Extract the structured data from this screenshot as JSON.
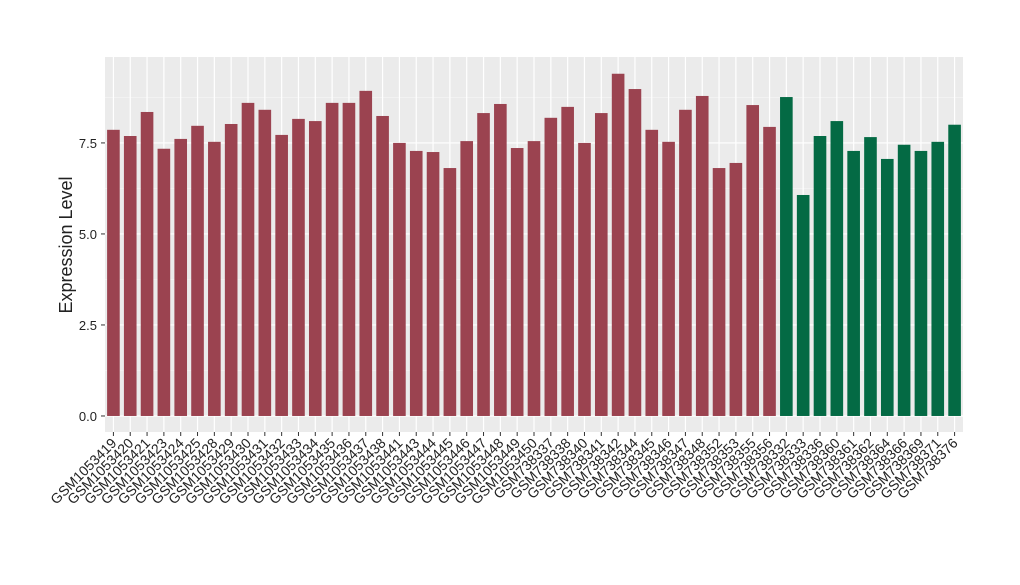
{
  "chart_data": {
    "type": "bar",
    "y_label": "Expression Level",
    "categories": [
      "GSM1053419",
      "GSM1053420",
      "GSM1053421",
      "GSM1053423",
      "GSM1053424",
      "GSM1053425",
      "GSM1053428",
      "GSM1053429",
      "GSM1053430",
      "GSM1053431",
      "GSM1053432",
      "GSM1053433",
      "GSM1053434",
      "GSM1053435",
      "GSM1053436",
      "GSM1053437",
      "GSM1053438",
      "GSM1053441",
      "GSM1053443",
      "GSM1053444",
      "GSM1053445",
      "GSM1053446",
      "GSM1053447",
      "GSM1053448",
      "GSM1053449",
      "GSM1053450",
      "GSM738337",
      "GSM738338",
      "GSM738340",
      "GSM738341",
      "GSM738342",
      "GSM738344",
      "GSM738345",
      "GSM738346",
      "GSM738347",
      "GSM738348",
      "GSM738352",
      "GSM738353",
      "GSM738355",
      "GSM738356",
      "GSM738332",
      "GSM738333",
      "GSM738336",
      "GSM738360",
      "GSM738361",
      "GSM738362",
      "GSM738364",
      "GSM738366",
      "GSM738369",
      "GSM738371",
      "GSM738376"
    ],
    "values": [
      7.86,
      7.69,
      8.35,
      7.34,
      7.61,
      7.97,
      7.53,
      8.02,
      8.6,
      8.41,
      7.72,
      8.16,
      8.1,
      8.6,
      8.6,
      8.93,
      8.24,
      7.5,
      7.28,
      7.25,
      6.81,
      7.55,
      8.32,
      8.57,
      7.36,
      7.55,
      8.19,
      8.49,
      7.5,
      8.32,
      9.4,
      8.98,
      7.86,
      7.53,
      8.41,
      8.79,
      6.81,
      6.95,
      8.54,
      7.94,
      8.76,
      6.07,
      7.69,
      8.1,
      7.28,
      7.66,
      7.06,
      7.45,
      7.28,
      7.53,
      8.0
    ],
    "colors": [
      "#9b4350",
      "#9b4350",
      "#9b4350",
      "#9b4350",
      "#9b4350",
      "#9b4350",
      "#9b4350",
      "#9b4350",
      "#9b4350",
      "#9b4350",
      "#9b4350",
      "#9b4350",
      "#9b4350",
      "#9b4350",
      "#9b4350",
      "#9b4350",
      "#9b4350",
      "#9b4350",
      "#9b4350",
      "#9b4350",
      "#9b4350",
      "#9b4350",
      "#9b4350",
      "#9b4350",
      "#9b4350",
      "#9b4350",
      "#9b4350",
      "#9b4350",
      "#9b4350",
      "#9b4350",
      "#9b4350",
      "#9b4350",
      "#9b4350",
      "#9b4350",
      "#9b4350",
      "#9b4350",
      "#9b4350",
      "#9b4350",
      "#9b4350",
      "#9b4350",
      "#046a44",
      "#046a44",
      "#046a44",
      "#046a44",
      "#046a44",
      "#046a44",
      "#046a44",
      "#046a44",
      "#046a44",
      "#046a44",
      "#046a44"
    ],
    "ylim": [
      -0.44,
      9.86
    ],
    "yticks": [
      {
        "value": 0,
        "label": "0.0"
      },
      2.5,
      {
        "value": 5,
        "label": "5.0"
      },
      7.5
    ],
    "grid": true
  }
}
